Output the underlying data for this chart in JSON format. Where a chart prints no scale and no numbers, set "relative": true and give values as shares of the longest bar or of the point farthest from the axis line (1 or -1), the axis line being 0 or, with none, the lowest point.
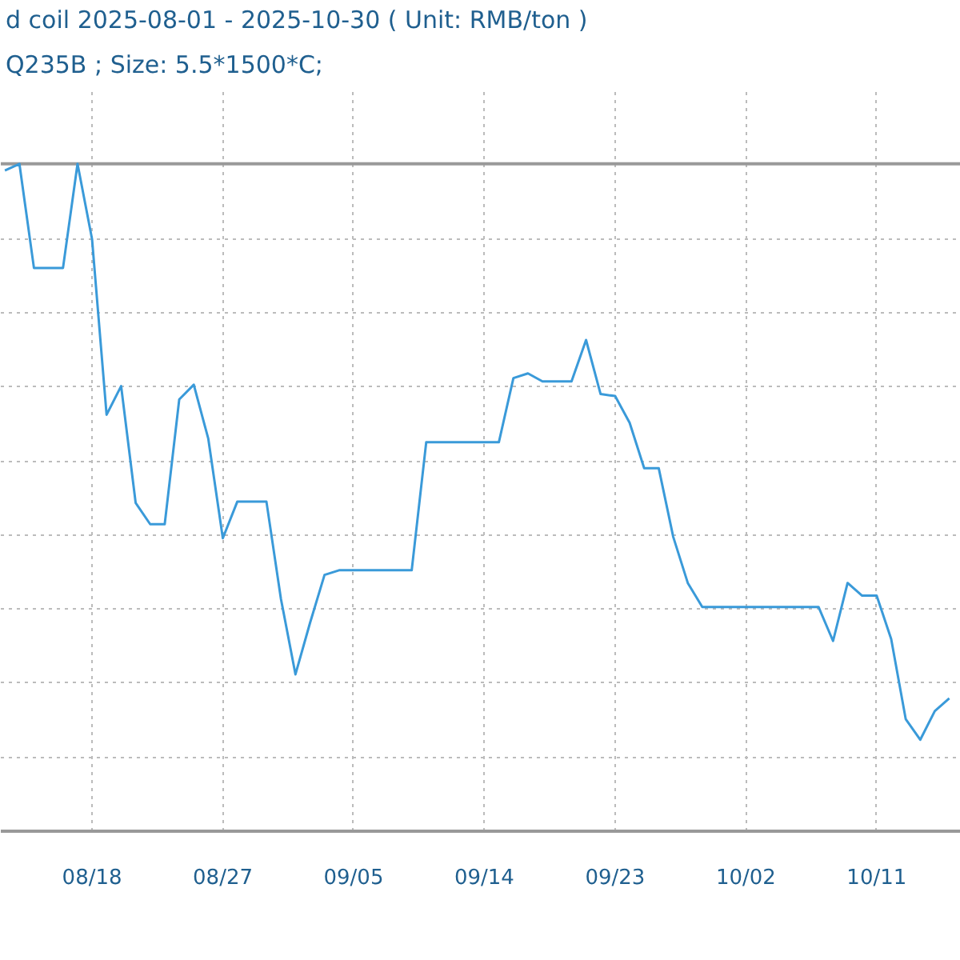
{
  "chart_data": {
    "type": "line",
    "title": "d coil 2025-08-01 - 2025-10-30    ( Unit: RMB/ton )",
    "subtitle": "Q235B ; Size: 5.5*1500*C;",
    "relative": true,
    "x": [
      "2025-08-12",
      "2025-08-13",
      "2025-08-14",
      "2025-08-16",
      "2025-08-17",
      "2025-08-18",
      "2025-08-19",
      "2025-08-20",
      "2025-08-21",
      "2025-08-22",
      "2025-08-23",
      "2025-08-24",
      "2025-08-25",
      "2025-08-26",
      "2025-08-27",
      "2025-08-28",
      "2025-08-29",
      "2025-08-30",
      "2025-08-31",
      "2025-09-01",
      "2025-09-02",
      "2025-09-03",
      "2025-09-04",
      "2025-09-09",
      "2025-09-10",
      "2025-09-11",
      "2025-09-15",
      "2025-09-16",
      "2025-09-17",
      "2025-09-18",
      "2025-09-20",
      "2025-09-21",
      "2025-09-22",
      "2025-09-23",
      "2025-09-24",
      "2025-09-25",
      "2025-09-26",
      "2025-09-27",
      "2025-09-28",
      "2025-09-29",
      "2025-10-07",
      "2025-10-08",
      "2025-10-09",
      "2025-10-10",
      "2025-10-11",
      "2025-10-12",
      "2025-10-13",
      "2025-10-14",
      "2025-10-15",
      "2025-10-16"
    ],
    "series": [
      {
        "color": "#3a9ad9",
        "values": [
          0.99,
          1.0,
          0.844,
          0.844,
          1.0,
          0.887,
          0.624,
          0.667,
          0.492,
          0.46,
          0.46,
          0.647,
          0.669,
          0.588,
          0.439,
          0.494,
          0.494,
          0.494,
          0.348,
          0.235,
          0.312,
          0.384,
          0.391,
          0.391,
          0.583,
          0.583,
          0.583,
          0.679,
          0.686,
          0.674,
          0.674,
          0.736,
          0.655,
          0.652,
          0.612,
          0.544,
          0.544,
          0.441,
          0.372,
          0.336,
          0.336,
          0.285,
          0.372,
          0.353,
          0.353,
          0.288,
          0.168,
          0.137,
          0.18,
          0.199
        ]
      }
    ],
    "xlim": [
      "2025-08-11T17:15",
      "2025-10-16T19:00"
    ],
    "xticks": [
      {
        "value": "2025-08-18",
        "label": "08/18"
      },
      {
        "value": "2025-08-27",
        "label": "08/27"
      },
      {
        "value": "2025-09-05",
        "label": "09/05"
      },
      {
        "value": "2025-09-14",
        "label": "09/14"
      },
      {
        "value": "2025-09-23",
        "label": "09/23"
      },
      {
        "value": "2025-10-02",
        "label": "10/02"
      },
      {
        "value": "2025-10-11",
        "label": "10/11"
      }
    ],
    "tick_labels": "x",
    "ref_lines": [
      {
        "axis": "y",
        "value": 1,
        "color": "#999999"
      }
    ],
    "grid": true,
    "marker": "none",
    "line_style": "solid"
  }
}
